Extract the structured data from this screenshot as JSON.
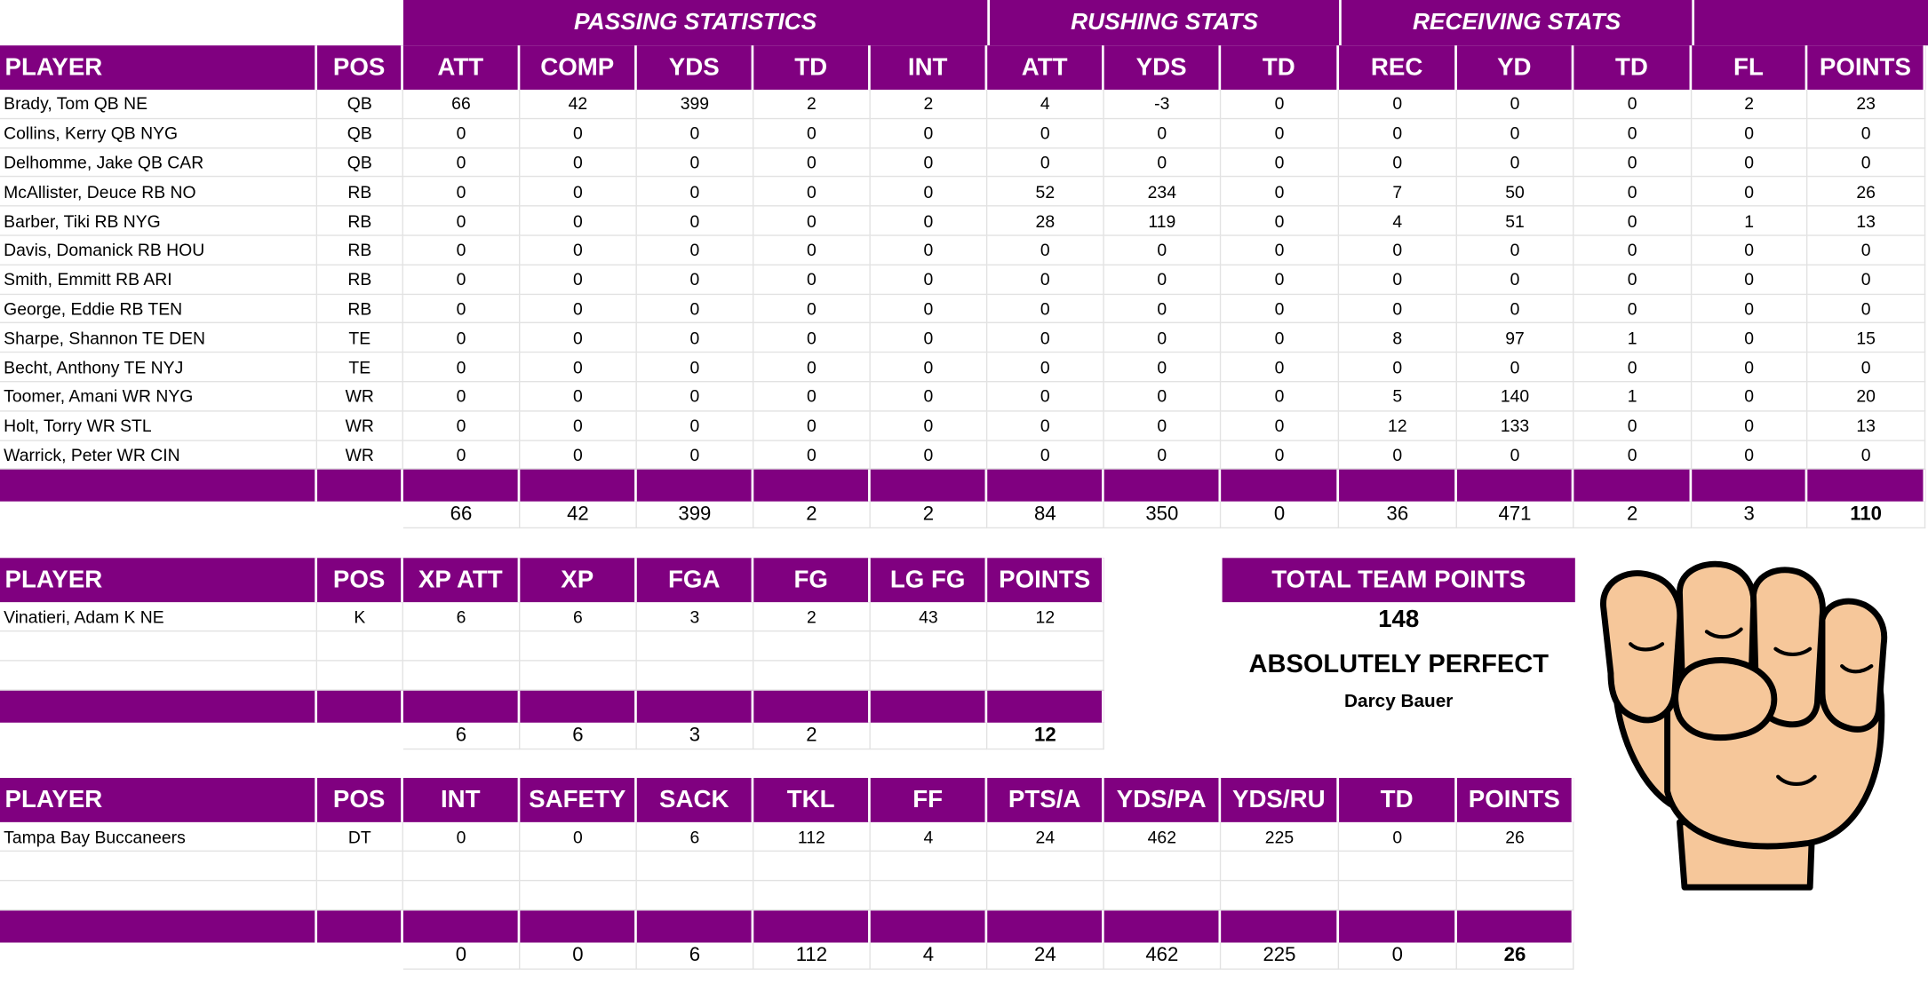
{
  "offense": {
    "group_headers": [
      "PASSING STATISTICS",
      "RUSHING STATS",
      "RECEIVING STATS"
    ],
    "columns": [
      "PLAYER",
      "POS",
      "ATT",
      "COMP",
      "YDS",
      "TD",
      "INT",
      "ATT",
      "YDS",
      "TD",
      "REC",
      "YD",
      "TD",
      "FL",
      "POINTS"
    ],
    "rows": [
      [
        "Brady, Tom QB NE",
        "QB",
        "66",
        "42",
        "399",
        "2",
        "2",
        "4",
        "-3",
        "0",
        "0",
        "0",
        "0",
        "2",
        "23"
      ],
      [
        "Collins, Kerry QB NYG",
        "QB",
        "0",
        "0",
        "0",
        "0",
        "0",
        "0",
        "0",
        "0",
        "0",
        "0",
        "0",
        "0",
        "0"
      ],
      [
        "Delhomme, Jake QB CAR",
        "QB",
        "0",
        "0",
        "0",
        "0",
        "0",
        "0",
        "0",
        "0",
        "0",
        "0",
        "0",
        "0",
        "0"
      ],
      [
        "McAllister, Deuce RB NO",
        "RB",
        "0",
        "0",
        "0",
        "0",
        "0",
        "52",
        "234",
        "0",
        "7",
        "50",
        "0",
        "0",
        "26"
      ],
      [
        "Barber, Tiki RB NYG",
        "RB",
        "0",
        "0",
        "0",
        "0",
        "0",
        "28",
        "119",
        "0",
        "4",
        "51",
        "0",
        "1",
        "13"
      ],
      [
        "Davis, Domanick RB HOU",
        "RB",
        "0",
        "0",
        "0",
        "0",
        "0",
        "0",
        "0",
        "0",
        "0",
        "0",
        "0",
        "0",
        "0"
      ],
      [
        "Smith, Emmitt RB ARI",
        "RB",
        "0",
        "0",
        "0",
        "0",
        "0",
        "0",
        "0",
        "0",
        "0",
        "0",
        "0",
        "0",
        "0"
      ],
      [
        "George, Eddie RB TEN",
        "RB",
        "0",
        "0",
        "0",
        "0",
        "0",
        "0",
        "0",
        "0",
        "0",
        "0",
        "0",
        "0",
        "0"
      ],
      [
        "Sharpe, Shannon TE DEN",
        "TE",
        "0",
        "0",
        "0",
        "0",
        "0",
        "0",
        "0",
        "0",
        "8",
        "97",
        "1",
        "0",
        "15"
      ],
      [
        "Becht, Anthony TE NYJ",
        "TE",
        "0",
        "0",
        "0",
        "0",
        "0",
        "0",
        "0",
        "0",
        "0",
        "0",
        "0",
        "0",
        "0"
      ],
      [
        "Toomer, Amani WR NYG",
        "WR",
        "0",
        "0",
        "0",
        "0",
        "0",
        "0",
        "0",
        "0",
        "5",
        "140",
        "1",
        "0",
        "20"
      ],
      [
        "Holt, Torry WR STL",
        "WR",
        "0",
        "0",
        "0",
        "0",
        "0",
        "0",
        "0",
        "0",
        "12",
        "133",
        "0",
        "0",
        "13"
      ],
      [
        "Warrick, Peter WR CIN",
        "WR",
        "0",
        "0",
        "0",
        "0",
        "0",
        "0",
        "0",
        "0",
        "0",
        "0",
        "0",
        "0",
        "0"
      ]
    ],
    "totals": [
      "",
      "",
      "66",
      "42",
      "399",
      "2",
      "2",
      "84",
      "350",
      "0",
      "36",
      "471",
      "2",
      "3",
      "110"
    ]
  },
  "kicker": {
    "columns": [
      "PLAYER",
      "POS",
      "XP ATT",
      "XP",
      "FGA",
      "FG",
      "LG FG",
      "POINTS"
    ],
    "rows": [
      [
        "Vinatieri, Adam K NE",
        "K",
        "6",
        "6",
        "3",
        "2",
        "43",
        "12"
      ]
    ],
    "totals": [
      "",
      "",
      "6",
      "6",
      "3",
      "2",
      "",
      "12"
    ]
  },
  "defense": {
    "columns": [
      "PLAYER",
      "POS",
      "INT",
      "SAFETY",
      "SACK",
      "TKL",
      "FF",
      "PTS/A",
      "YDS/PA",
      "YDS/RU",
      "TD",
      "POINTS"
    ],
    "rows": [
      [
        "Tampa Bay Buccaneers",
        "DT",
        "0",
        "0",
        "6",
        "112",
        "4",
        "24",
        "462",
        "225",
        "0",
        "26"
      ]
    ],
    "totals": [
      "",
      "",
      "0",
      "0",
      "6",
      "112",
      "4",
      "24",
      "462",
      "225",
      "0",
      "26"
    ]
  },
  "summary": {
    "title": "TOTAL TEAM POINTS",
    "value": "148",
    "tagline": "ABSOLUTELY PERFECT",
    "owner": "Darcy Bauer"
  },
  "image": {
    "icon": "fist-icon"
  },
  "colors": {
    "header_bg": "#800080",
    "header_text": "#ffffff",
    "skin": "#f6c79a",
    "outline": "#000000"
  }
}
